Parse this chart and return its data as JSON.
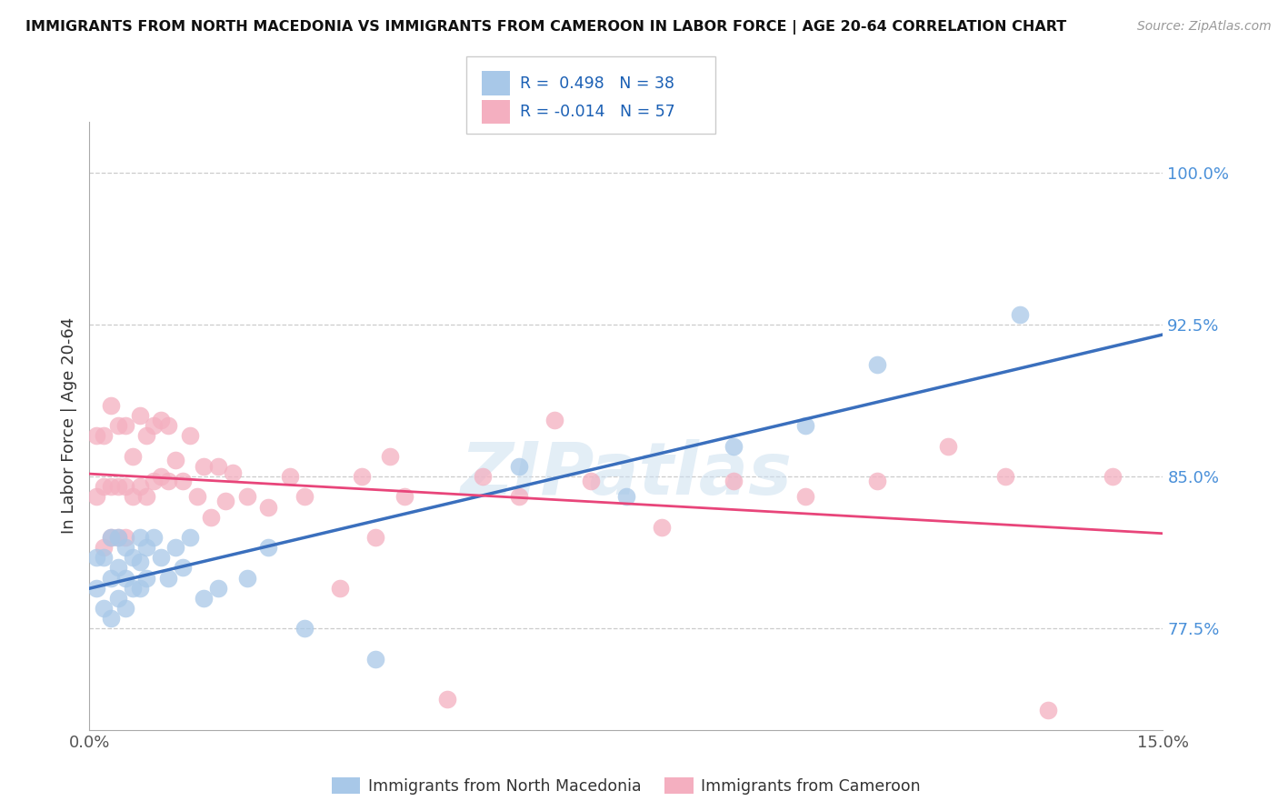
{
  "title": "IMMIGRANTS FROM NORTH MACEDONIA VS IMMIGRANTS FROM CAMEROON IN LABOR FORCE | AGE 20-64 CORRELATION CHART",
  "source": "Source: ZipAtlas.com",
  "ylabel": "In Labor Force | Age 20-64",
  "xlim": [
    0.0,
    0.15
  ],
  "ylim": [
    0.725,
    1.025
  ],
  "yticks": [
    0.775,
    0.85,
    0.925,
    1.0
  ],
  "ytick_labels": [
    "77.5%",
    "85.0%",
    "92.5%",
    "100.0%"
  ],
  "xticks": [
    0.0,
    0.03,
    0.06,
    0.09,
    0.12,
    0.15
  ],
  "xtick_labels": [
    "0.0%",
    "",
    "",
    "",
    "",
    "15.0%"
  ],
  "color_blue": "#a8c8e8",
  "color_pink": "#f4afc0",
  "line_blue": "#3a6fbd",
  "line_pink": "#e8457a",
  "R_blue": 0.498,
  "N_blue": 38,
  "R_pink": -0.014,
  "N_pink": 57,
  "legend_label_blue": "Immigrants from North Macedonia",
  "legend_label_pink": "Immigrants from Cameroon",
  "watermark": "ZIPatlas",
  "blue_x": [
    0.001,
    0.001,
    0.002,
    0.002,
    0.003,
    0.003,
    0.003,
    0.004,
    0.004,
    0.004,
    0.005,
    0.005,
    0.005,
    0.006,
    0.006,
    0.007,
    0.007,
    0.007,
    0.008,
    0.008,
    0.009,
    0.01,
    0.011,
    0.012,
    0.013,
    0.014,
    0.016,
    0.018,
    0.022,
    0.025,
    0.03,
    0.04,
    0.06,
    0.075,
    0.09,
    0.1,
    0.11,
    0.13
  ],
  "blue_y": [
    0.795,
    0.81,
    0.785,
    0.81,
    0.78,
    0.8,
    0.82,
    0.79,
    0.805,
    0.82,
    0.785,
    0.8,
    0.815,
    0.795,
    0.81,
    0.795,
    0.808,
    0.82,
    0.8,
    0.815,
    0.82,
    0.81,
    0.8,
    0.815,
    0.805,
    0.82,
    0.79,
    0.795,
    0.8,
    0.815,
    0.775,
    0.76,
    0.855,
    0.84,
    0.865,
    0.875,
    0.905,
    0.93
  ],
  "pink_x": [
    0.001,
    0.001,
    0.002,
    0.002,
    0.002,
    0.003,
    0.003,
    0.003,
    0.004,
    0.004,
    0.004,
    0.005,
    0.005,
    0.005,
    0.006,
    0.006,
    0.007,
    0.007,
    0.008,
    0.008,
    0.009,
    0.009,
    0.01,
    0.01,
    0.011,
    0.011,
    0.012,
    0.013,
    0.014,
    0.015,
    0.016,
    0.017,
    0.018,
    0.019,
    0.02,
    0.022,
    0.025,
    0.028,
    0.03,
    0.035,
    0.038,
    0.04,
    0.042,
    0.044,
    0.05,
    0.055,
    0.06,
    0.065,
    0.07,
    0.08,
    0.09,
    0.1,
    0.11,
    0.12,
    0.128,
    0.134,
    0.143
  ],
  "pink_y": [
    0.84,
    0.87,
    0.815,
    0.845,
    0.87,
    0.82,
    0.845,
    0.885,
    0.82,
    0.845,
    0.875,
    0.82,
    0.845,
    0.875,
    0.84,
    0.86,
    0.845,
    0.88,
    0.84,
    0.87,
    0.848,
    0.875,
    0.85,
    0.878,
    0.848,
    0.875,
    0.858,
    0.848,
    0.87,
    0.84,
    0.855,
    0.83,
    0.855,
    0.838,
    0.852,
    0.84,
    0.835,
    0.85,
    0.84,
    0.795,
    0.85,
    0.82,
    0.86,
    0.84,
    0.74,
    0.85,
    0.84,
    0.878,
    0.848,
    0.825,
    0.848,
    0.84,
    0.848,
    0.865,
    0.85,
    0.735,
    0.85
  ]
}
